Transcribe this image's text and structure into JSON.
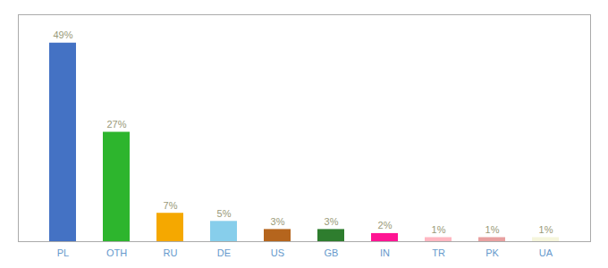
{
  "chart_data": {
    "type": "bar",
    "categories": [
      "PL",
      "OTH",
      "RU",
      "DE",
      "US",
      "GB",
      "IN",
      "TR",
      "PK",
      "UA"
    ],
    "values": [
      49,
      27,
      7,
      5,
      3,
      3,
      2,
      1,
      1,
      1
    ],
    "value_labels": [
      "49%",
      "27%",
      "7%",
      "5%",
      "3%",
      "3%",
      "2%",
      "1%",
      "1%",
      "1%"
    ],
    "colors": [
      "#4472c4",
      "#2db52d",
      "#f5a800",
      "#87ceeb",
      "#b5651d",
      "#2e7d2e",
      "#ff1493",
      "#ffb6c1",
      "#e8a0a0",
      "#f5f5dc"
    ],
    "ylim": [
      0,
      56
    ],
    "yticks": [],
    "grid": false,
    "data_labels": true,
    "tick_labels": "x"
  }
}
